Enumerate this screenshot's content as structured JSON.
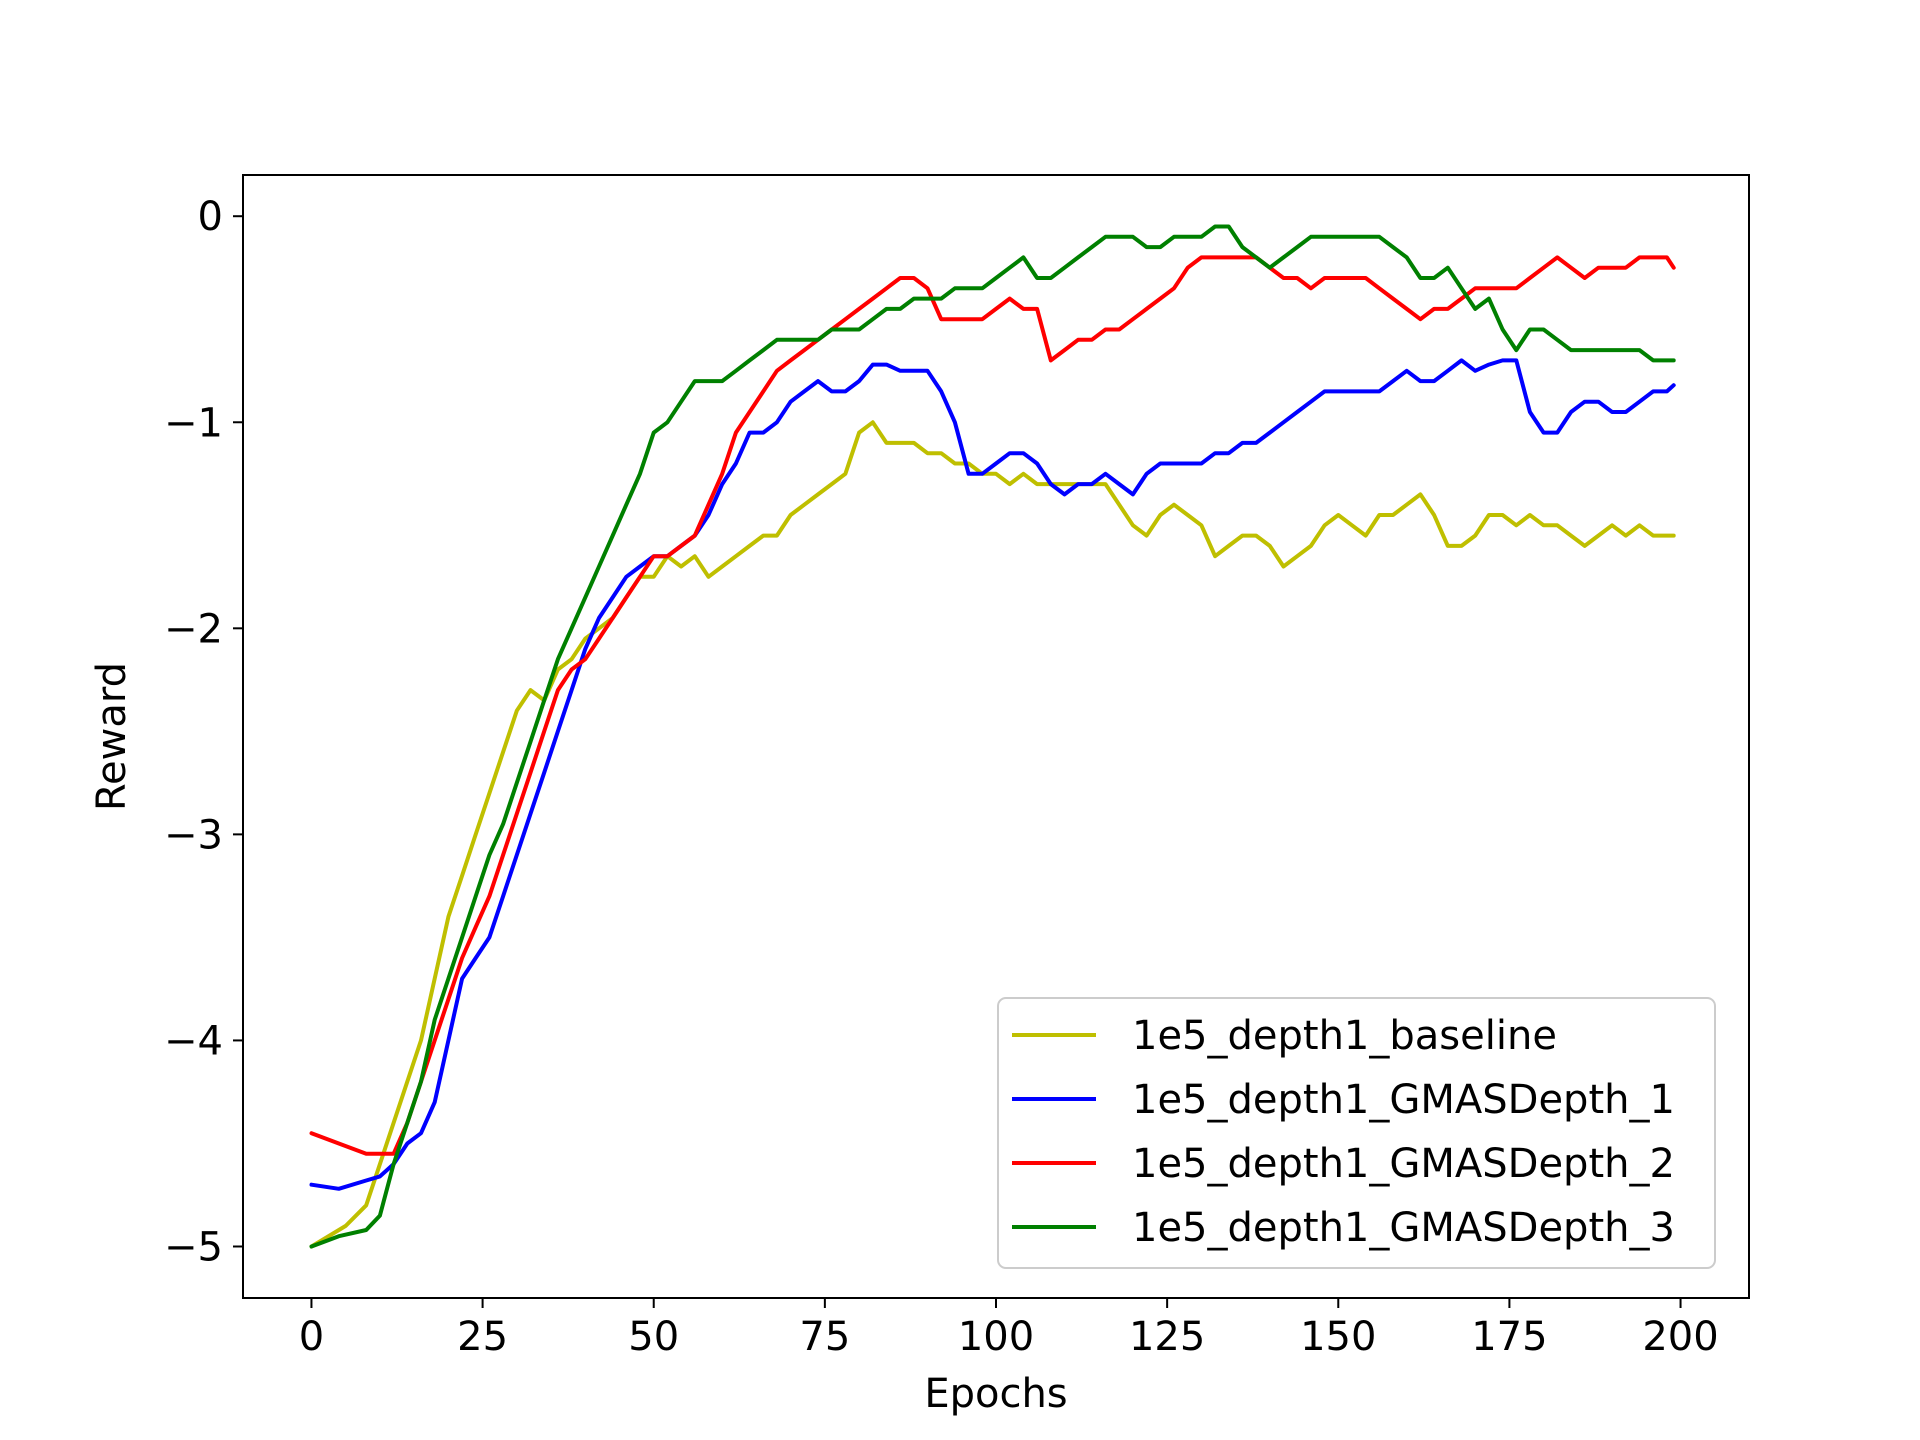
{
  "chart_data": {
    "type": "line",
    "title": "",
    "xlabel": "Epochs",
    "ylabel": "Reward",
    "xlim": [
      -10,
      210
    ],
    "ylim": [
      -5.25,
      0.2
    ],
    "xticks": [
      0,
      25,
      50,
      75,
      100,
      125,
      150,
      175,
      200
    ],
    "yticks": [
      0,
      -1,
      -2,
      -3,
      -4,
      -5
    ],
    "xtick_labels": [
      "0",
      "25",
      "50",
      "75",
      "100",
      "125",
      "150",
      "175",
      "200"
    ],
    "ytick_labels": [
      "0",
      "−1",
      "−2",
      "−3",
      "−4",
      "−5"
    ],
    "grid": false,
    "legend_position": "lower-right",
    "series": [
      {
        "name": "1e5_depth1_baseline",
        "color": "#bfbf00",
        "x": [
          0,
          5,
          8,
          10,
          12,
          14,
          16,
          18,
          20,
          22,
          24,
          26,
          28,
          30,
          32,
          34,
          36,
          38,
          40,
          42,
          44,
          46,
          48,
          50,
          52,
          54,
          56,
          58,
          60,
          62,
          64,
          66,
          68,
          70,
          72,
          74,
          76,
          78,
          80,
          82,
          84,
          86,
          88,
          90,
          92,
          94,
          96,
          98,
          100,
          102,
          104,
          106,
          108,
          110,
          112,
          114,
          116,
          118,
          120,
          122,
          124,
          126,
          128,
          130,
          132,
          134,
          136,
          138,
          140,
          142,
          144,
          146,
          148,
          150,
          152,
          154,
          156,
          158,
          160,
          162,
          164,
          166,
          168,
          170,
          172,
          174,
          176,
          178,
          180,
          182,
          184,
          186,
          188,
          190,
          192,
          194,
          196,
          198,
          199
        ],
        "values": [
          -5.0,
          -4.9,
          -4.8,
          -4.6,
          -4.4,
          -4.2,
          -4.0,
          -3.7,
          -3.4,
          -3.2,
          -3.0,
          -2.8,
          -2.6,
          -2.4,
          -2.3,
          -2.35,
          -2.2,
          -2.15,
          -2.05,
          -2.0,
          -1.95,
          -1.85,
          -1.75,
          -1.75,
          -1.65,
          -1.7,
          -1.65,
          -1.75,
          -1.7,
          -1.65,
          -1.6,
          -1.55,
          -1.55,
          -1.45,
          -1.4,
          -1.35,
          -1.3,
          -1.25,
          -1.05,
          -1.0,
          -1.1,
          -1.1,
          -1.1,
          -1.15,
          -1.15,
          -1.2,
          -1.2,
          -1.25,
          -1.25,
          -1.3,
          -1.25,
          -1.3,
          -1.3,
          -1.3,
          -1.3,
          -1.3,
          -1.3,
          -1.4,
          -1.5,
          -1.55,
          -1.45,
          -1.4,
          -1.45,
          -1.5,
          -1.65,
          -1.6,
          -1.55,
          -1.55,
          -1.6,
          -1.7,
          -1.65,
          -1.6,
          -1.5,
          -1.45,
          -1.5,
          -1.55,
          -1.45,
          -1.45,
          -1.4,
          -1.35,
          -1.45,
          -1.6,
          -1.6,
          -1.55,
          -1.45,
          -1.45,
          -1.5,
          -1.45,
          -1.5,
          -1.5,
          -1.55,
          -1.6,
          -1.55,
          -1.5,
          -1.55,
          -1.5,
          -1.55,
          -1.55,
          -1.55
        ]
      },
      {
        "name": "1e5_depth1_GMASDepth_1",
        "color": "#0000ff",
        "x": [
          0,
          4,
          8,
          10,
          12,
          14,
          16,
          18,
          20,
          22,
          24,
          26,
          28,
          30,
          32,
          34,
          36,
          38,
          40,
          42,
          44,
          46,
          48,
          50,
          52,
          54,
          56,
          58,
          60,
          62,
          64,
          66,
          68,
          70,
          72,
          74,
          76,
          78,
          80,
          82,
          84,
          86,
          88,
          90,
          92,
          94,
          96,
          98,
          100,
          102,
          104,
          106,
          108,
          110,
          112,
          114,
          116,
          118,
          120,
          122,
          124,
          126,
          128,
          130,
          132,
          134,
          136,
          138,
          140,
          142,
          144,
          146,
          148,
          150,
          152,
          154,
          156,
          158,
          160,
          162,
          164,
          166,
          168,
          170,
          172,
          174,
          176,
          178,
          180,
          182,
          184,
          186,
          188,
          190,
          192,
          194,
          196,
          198,
          199
        ],
        "values": [
          -4.7,
          -4.72,
          -4.68,
          -4.66,
          -4.6,
          -4.5,
          -4.45,
          -4.3,
          -4.0,
          -3.7,
          -3.6,
          -3.5,
          -3.3,
          -3.1,
          -2.9,
          -2.7,
          -2.5,
          -2.3,
          -2.1,
          -1.95,
          -1.85,
          -1.75,
          -1.7,
          -1.65,
          -1.65,
          -1.6,
          -1.55,
          -1.45,
          -1.3,
          -1.2,
          -1.05,
          -1.05,
          -1.0,
          -0.9,
          -0.85,
          -0.8,
          -0.85,
          -0.85,
          -0.8,
          -0.72,
          -0.72,
          -0.75,
          -0.75,
          -0.75,
          -0.85,
          -1.0,
          -1.25,
          -1.25,
          -1.2,
          -1.15,
          -1.15,
          -1.2,
          -1.3,
          -1.35,
          -1.3,
          -1.3,
          -1.25,
          -1.3,
          -1.35,
          -1.25,
          -1.2,
          -1.2,
          -1.2,
          -1.2,
          -1.15,
          -1.15,
          -1.1,
          -1.1,
          -1.05,
          -1.0,
          -0.95,
          -0.9,
          -0.85,
          -0.85,
          -0.85,
          -0.85,
          -0.85,
          -0.8,
          -0.75,
          -0.8,
          -0.8,
          -0.75,
          -0.7,
          -0.75,
          -0.72,
          -0.7,
          -0.7,
          -0.95,
          -1.05,
          -1.05,
          -0.95,
          -0.9,
          -0.9,
          -0.95,
          -0.95,
          -0.9,
          -0.85,
          -0.85,
          -0.82
        ]
      },
      {
        "name": "1e5_depth1_GMASDepth_2",
        "color": "#ff0000",
        "x": [
          0,
          4,
          8,
          10,
          12,
          14,
          16,
          18,
          20,
          22,
          24,
          26,
          28,
          30,
          32,
          34,
          36,
          38,
          40,
          42,
          44,
          46,
          48,
          50,
          52,
          54,
          56,
          58,
          60,
          62,
          64,
          66,
          68,
          70,
          72,
          74,
          76,
          78,
          80,
          82,
          84,
          86,
          88,
          90,
          92,
          94,
          96,
          98,
          100,
          102,
          104,
          106,
          108,
          110,
          112,
          114,
          116,
          118,
          120,
          122,
          124,
          126,
          128,
          130,
          132,
          134,
          136,
          138,
          140,
          142,
          144,
          146,
          148,
          150,
          152,
          154,
          156,
          158,
          160,
          162,
          164,
          166,
          168,
          170,
          172,
          174,
          176,
          178,
          180,
          182,
          184,
          186,
          188,
          190,
          192,
          194,
          196,
          198,
          199
        ],
        "values": [
          -4.45,
          -4.5,
          -4.55,
          -4.55,
          -4.55,
          -4.4,
          -4.2,
          -4.0,
          -3.8,
          -3.6,
          -3.45,
          -3.3,
          -3.1,
          -2.9,
          -2.7,
          -2.5,
          -2.3,
          -2.2,
          -2.15,
          -2.05,
          -1.95,
          -1.85,
          -1.75,
          -1.65,
          -1.65,
          -1.6,
          -1.55,
          -1.4,
          -1.25,
          -1.05,
          -0.95,
          -0.85,
          -0.75,
          -0.7,
          -0.65,
          -0.6,
          -0.55,
          -0.5,
          -0.45,
          -0.4,
          -0.35,
          -0.3,
          -0.3,
          -0.35,
          -0.5,
          -0.5,
          -0.5,
          -0.5,
          -0.45,
          -0.4,
          -0.45,
          -0.45,
          -0.7,
          -0.65,
          -0.6,
          -0.6,
          -0.55,
          -0.55,
          -0.5,
          -0.45,
          -0.4,
          -0.35,
          -0.25,
          -0.2,
          -0.2,
          -0.2,
          -0.2,
          -0.2,
          -0.25,
          -0.3,
          -0.3,
          -0.35,
          -0.3,
          -0.3,
          -0.3,
          -0.3,
          -0.35,
          -0.4,
          -0.45,
          -0.5,
          -0.45,
          -0.45,
          -0.4,
          -0.35,
          -0.35,
          -0.35,
          -0.35,
          -0.3,
          -0.25,
          -0.2,
          -0.25,
          -0.3,
          -0.25,
          -0.25,
          -0.25,
          -0.2,
          -0.2,
          -0.2,
          -0.25
        ]
      },
      {
        "name": "1e5_depth1_GMASDepth_3",
        "color": "#008000",
        "x": [
          0,
          4,
          8,
          10,
          12,
          14,
          16,
          18,
          20,
          22,
          24,
          26,
          28,
          30,
          32,
          34,
          36,
          38,
          40,
          42,
          44,
          46,
          48,
          50,
          52,
          54,
          56,
          58,
          60,
          62,
          64,
          66,
          68,
          70,
          72,
          74,
          76,
          78,
          80,
          82,
          84,
          86,
          88,
          90,
          92,
          94,
          96,
          98,
          100,
          102,
          104,
          106,
          108,
          110,
          112,
          114,
          116,
          118,
          120,
          122,
          124,
          126,
          128,
          130,
          132,
          134,
          136,
          138,
          140,
          142,
          144,
          146,
          148,
          150,
          152,
          154,
          156,
          158,
          160,
          162,
          164,
          166,
          168,
          170,
          172,
          174,
          176,
          178,
          180,
          182,
          184,
          186,
          188,
          190,
          192,
          194,
          196,
          198,
          199
        ],
        "values": [
          -5.0,
          -4.95,
          -4.92,
          -4.85,
          -4.6,
          -4.4,
          -4.2,
          -3.9,
          -3.7,
          -3.5,
          -3.3,
          -3.1,
          -2.95,
          -2.75,
          -2.55,
          -2.35,
          -2.15,
          -2.0,
          -1.85,
          -1.7,
          -1.55,
          -1.4,
          -1.25,
          -1.05,
          -1.0,
          -0.9,
          -0.8,
          -0.8,
          -0.8,
          -0.75,
          -0.7,
          -0.65,
          -0.6,
          -0.6,
          -0.6,
          -0.6,
          -0.55,
          -0.55,
          -0.55,
          -0.5,
          -0.45,
          -0.45,
          -0.4,
          -0.4,
          -0.4,
          -0.35,
          -0.35,
          -0.35,
          -0.3,
          -0.25,
          -0.2,
          -0.3,
          -0.3,
          -0.25,
          -0.2,
          -0.15,
          -0.1,
          -0.1,
          -0.1,
          -0.15,
          -0.15,
          -0.1,
          -0.1,
          -0.1,
          -0.05,
          -0.05,
          -0.15,
          -0.2,
          -0.25,
          -0.2,
          -0.15,
          -0.1,
          -0.1,
          -0.1,
          -0.1,
          -0.1,
          -0.1,
          -0.15,
          -0.2,
          -0.3,
          -0.3,
          -0.25,
          -0.35,
          -0.45,
          -0.4,
          -0.55,
          -0.65,
          -0.55,
          -0.55,
          -0.6,
          -0.65,
          -0.65,
          -0.65,
          -0.65,
          -0.65,
          -0.65,
          -0.7,
          -0.7,
          -0.7
        ]
      }
    ]
  }
}
